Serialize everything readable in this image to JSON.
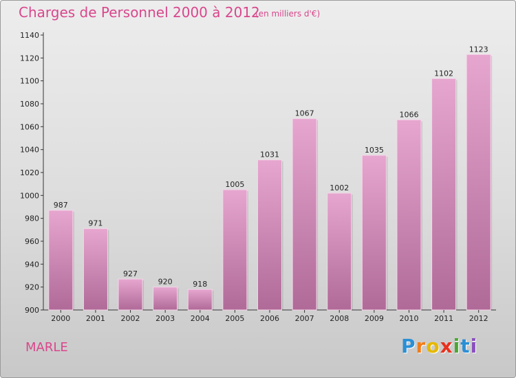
{
  "chart_data": {
    "type": "bar",
    "title": "Charges de Personnel 2000 à 2012",
    "subtitle": "(en milliers d'€)",
    "categories": [
      "2000",
      "2001",
      "2002",
      "2003",
      "2004",
      "2005",
      "2006",
      "2007",
      "2008",
      "2009",
      "2010",
      "2011",
      "2012"
    ],
    "values": [
      987,
      971,
      927,
      920,
      918,
      1005,
      1031,
      1067,
      1002,
      1035,
      1066,
      1102,
      1123
    ],
    "ylim": [
      900,
      1140
    ],
    "yticks": [
      900,
      920,
      940,
      960,
      980,
      1000,
      1020,
      1040,
      1060,
      1080,
      1100,
      1120,
      1140
    ],
    "xlabel": "",
    "ylabel": "",
    "grid": false,
    "bar_color_top": "#e6a6cf",
    "bar_color_bottom": "#b06a98"
  },
  "location": "MARLE",
  "brand": {
    "letters": [
      "P",
      "r",
      "o",
      "x",
      "i",
      "t",
      "i"
    ],
    "colors": [
      "#2b8fd6",
      "#f07d1a",
      "#e6b800",
      "#e8321e",
      "#4aa832",
      "#2b8fd6",
      "#8a4fbf"
    ]
  }
}
